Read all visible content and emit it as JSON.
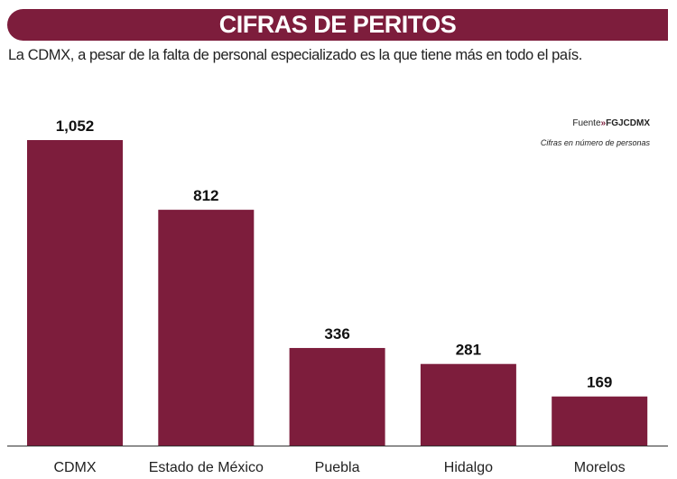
{
  "header": {
    "title": "CIFRAS DE PERITOS",
    "subtitle": "La CDMX, a pesar de la falta de personal especializado es la que tiene más en todo el país."
  },
  "source": {
    "label": "Fuente",
    "arrow": "»",
    "name": "FGJCDMX"
  },
  "note": "Cifras en número de personas",
  "colors": {
    "bar": "#7d1d3c",
    "banner": "#7d1d3c"
  },
  "chart_data": {
    "type": "bar",
    "title": "CIFRAS DE PERITOS",
    "categories": [
      "CDMX",
      "Estado de México",
      "Puebla",
      "Hidalgo",
      "Morelos"
    ],
    "values": [
      1052,
      812,
      336,
      281,
      169
    ],
    "value_labels": [
      "1,052",
      "812",
      "336",
      "281",
      "169"
    ],
    "xlabel": "",
    "ylabel": "",
    "ylim": [
      0,
      1052
    ],
    "grid": false,
    "legend": "none"
  }
}
